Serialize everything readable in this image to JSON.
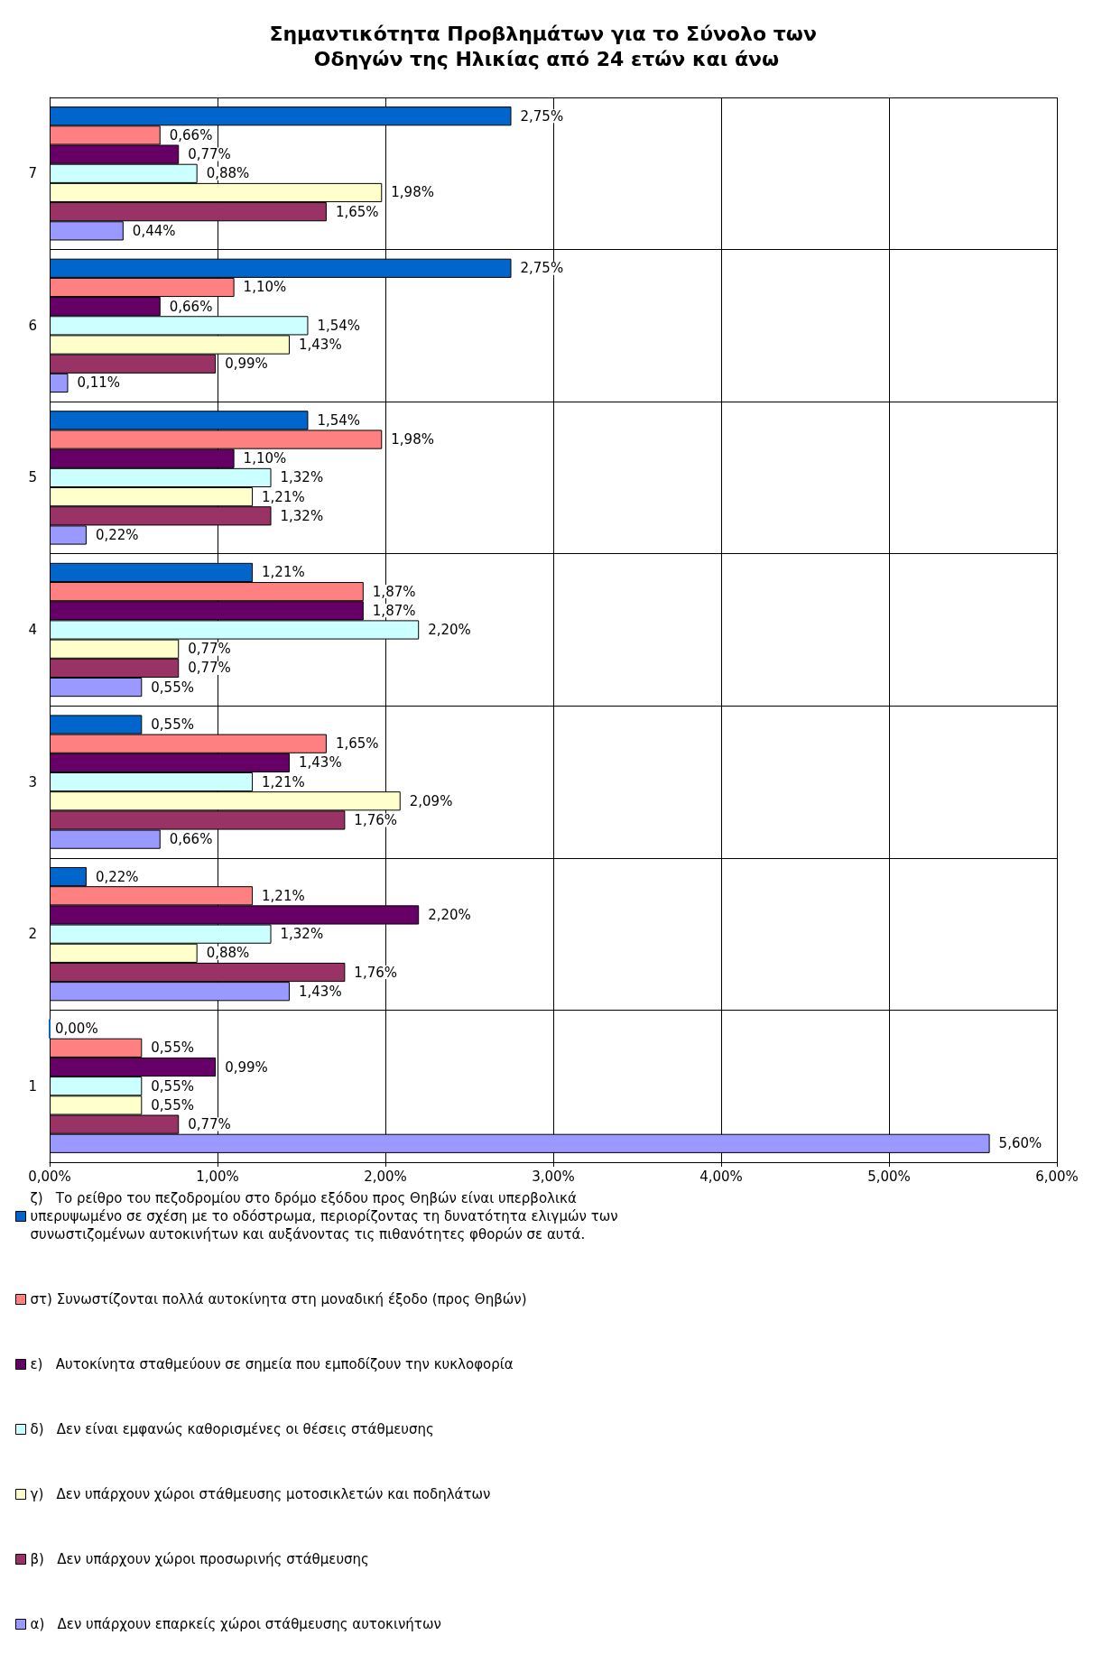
{
  "chart_data": {
    "type": "bar",
    "orientation": "horizontal",
    "title": "Σημαντικότητα Προβλημάτων για το Σύνολο των Οδηγών της Ηλικίας από 24 ετών και άνω",
    "categories": [
      "7",
      "6",
      "5",
      "4",
      "3",
      "2",
      "1"
    ],
    "series": [
      {
        "name": "ζ)   Το ρείθρο του πεζοδρομίου στο δρόμο εξόδου προς Θηβών είναι υπερβολικά υπερυψωμένο σε σχέση με το οδόστρωμα, περιορίζοντας τη δυνατότητα ελιγμών των συνωστιζομένων αυτοκινήτων και αυξάνοντας τις πιθανότητες φθορών σε αυτά.",
        "color": "#0066cc",
        "values": [
          2.75,
          2.75,
          1.54,
          1.21,
          0.55,
          0.22,
          0.0
        ],
        "value_labels": [
          "2,75%",
          "2,75%",
          "1,54%",
          "1,21%",
          "0,55%",
          "0,22%",
          "0,00%"
        ]
      },
      {
        "name": "στ) Συνωστίζονται πολλά αυτοκίνητα στη μοναδική έξοδο (προς Θηβών)",
        "color": "#ff8080",
        "values": [
          0.66,
          1.1,
          1.98,
          1.87,
          1.65,
          1.21,
          0.55
        ],
        "value_labels": [
          "0,66%",
          "1,10%",
          "1,98%",
          "1,87%",
          "1,65%",
          "1,21%",
          "0,55%"
        ]
      },
      {
        "name": "ε)   Αυτοκίνητα σταθμεύουν σε σημεία που εμποδίζουν την κυκλοφορία",
        "color": "#660066",
        "values": [
          0.77,
          0.66,
          1.1,
          1.87,
          1.43,
          2.2,
          0.99
        ],
        "value_labels": [
          "0,77%",
          "0,66%",
          "1,10%",
          "1,87%",
          "1,43%",
          "2,20%",
          "0,99%"
        ]
      },
      {
        "name": "δ)   Δεν είναι εμφανώς καθορισμένες οι θέσεις στάθμευσης",
        "color": "#ccffff",
        "values": [
          0.88,
          1.54,
          1.32,
          2.2,
          1.21,
          1.32,
          0.55
        ],
        "value_labels": [
          "0,88%",
          "1,54%",
          "1,32%",
          "2,20%",
          "1,21%",
          "1,32%",
          "0,55%"
        ]
      },
      {
        "name": "γ)   Δεν υπάρχουν χώροι στάθμευσης μοτοσικλετών και ποδηλάτων",
        "color": "#ffffcc",
        "values": [
          1.98,
          1.43,
          1.21,
          0.77,
          2.09,
          0.88,
          0.55
        ],
        "value_labels": [
          "1,98%",
          "1,43%",
          "1,21%",
          "0,77%",
          "2,09%",
          "0,88%",
          "0,55%"
        ]
      },
      {
        "name": "β)   Δεν υπάρχουν χώροι προσωρινής στάθμευσης",
        "color": "#993366",
        "values": [
          1.65,
          0.99,
          1.32,
          0.77,
          1.76,
          1.76,
          0.77
        ],
        "value_labels": [
          "1,65%",
          "0,99%",
          "1,32%",
          "0,77%",
          "1,76%",
          "1,76%",
          "0,77%"
        ]
      },
      {
        "name": "α)   Δεν υπάρχουν επαρκείς χώροι στάθμευσης αυτοκινήτων",
        "color": "#9999ff",
        "values": [
          0.44,
          0.11,
          0.22,
          0.55,
          0.66,
          1.43,
          5.6
        ],
        "value_labels": [
          "0,44%",
          "0,11%",
          "0,22%",
          "0,55%",
          "0,66%",
          "1,43%",
          "5,60%"
        ]
      }
    ],
    "xlim": [
      0,
      6
    ],
    "xticks": [
      {
        "value": 0,
        "label": "0,00%"
      },
      {
        "value": 1,
        "label": "1,00%"
      },
      {
        "value": 2,
        "label": "2,00%"
      },
      {
        "value": 3,
        "label": "3,00%"
      },
      {
        "value": 4,
        "label": "4,00%"
      },
      {
        "value": 5,
        "label": "5,00%"
      },
      {
        "value": 6,
        "label": "6,00%"
      }
    ],
    "grid": true,
    "legend": "bottom"
  }
}
